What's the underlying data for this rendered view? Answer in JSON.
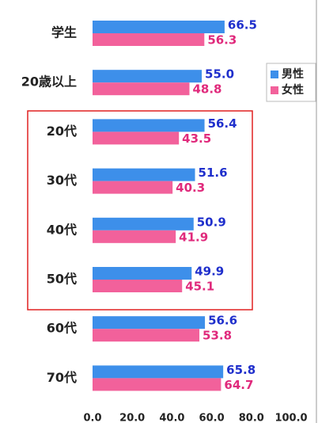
{
  "chart_data": {
    "type": "barh",
    "categories": [
      "学生",
      "20歳以上",
      "20代",
      "30代",
      "40代",
      "50代",
      "60代",
      "70代"
    ],
    "series": [
      {
        "name": "男性",
        "color": "#3d8fea",
        "label_color": "#1f2fcc",
        "values": [
          66.5,
          55.0,
          56.4,
          51.6,
          50.9,
          49.9,
          56.6,
          65.8
        ],
        "value_labels": [
          "66.5",
          "55.0",
          "56.4",
          "51.6",
          "50.9",
          "49.9",
          "56.6",
          "65.8"
        ]
      },
      {
        "name": "女性",
        "color": "#f2619b",
        "label_color": "#e02a7c",
        "values": [
          56.3,
          48.8,
          43.5,
          40.3,
          41.9,
          45.1,
          53.8,
          64.7
        ],
        "value_labels": [
          "56.3",
          "48.8",
          "43.5",
          "40.3",
          "41.9",
          "45.1",
          "53.8",
          "64.7"
        ]
      }
    ],
    "xlim": [
      0,
      100
    ],
    "xticks": [
      {
        "value": 0,
        "label": "0.0"
      },
      {
        "value": 20,
        "label": "20.0"
      },
      {
        "value": 40,
        "label": "40.0"
      },
      {
        "value": 60,
        "label": "60.0"
      },
      {
        "value": 80,
        "label": "80.0"
      },
      {
        "value": 100,
        "label": "100.0"
      }
    ],
    "legend": "upper right"
  }
}
